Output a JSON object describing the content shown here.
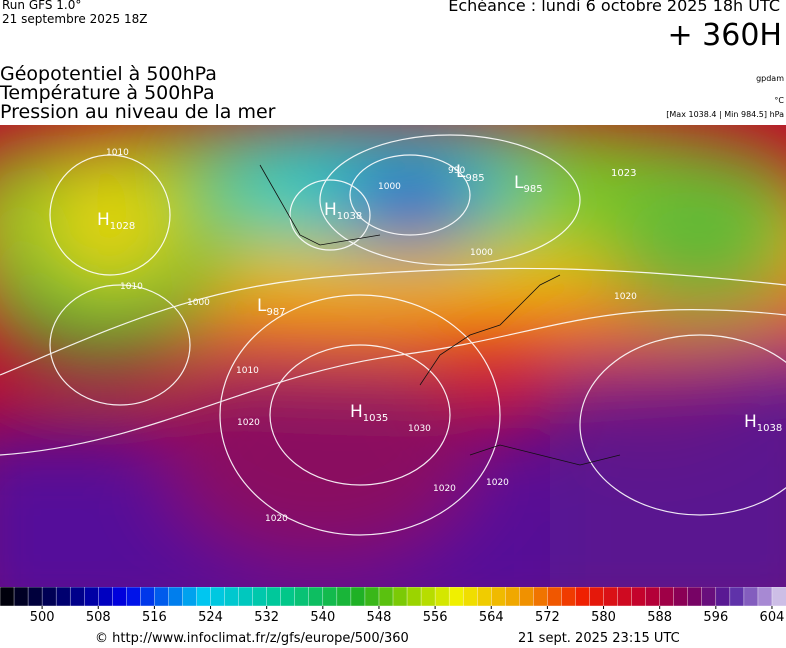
{
  "header": {
    "run": "Run GFS 1.0°",
    "run_date": "21 septembre 2025 18Z",
    "valid": "Echéance : lundi 6 octobre 2025 18h UTC",
    "lead": "+ 360H"
  },
  "fields": [
    "Géopotentiel à 500hPa",
    "Température à 500hPa",
    "Pression au niveau de la mer"
  ],
  "units": {
    "geopotential": "gpdam",
    "temperature": "°C",
    "pressure": "[Max 1038.4 | Min 984.5] hPa"
  },
  "systems": [
    {
      "letter": "H",
      "value": 1028
    },
    {
      "letter": "H",
      "value": 1038
    },
    {
      "letter": "L",
      "value": 985
    },
    {
      "letter": "L",
      "value": 985
    },
    {
      "letter": "",
      "value": 1023
    },
    {
      "letter": "L",
      "value": 987
    },
    {
      "letter": "H",
      "value": 1035
    },
    {
      "letter": "H",
      "value": 1038
    }
  ],
  "isobar_labels": [
    1010,
    1000,
    990,
    1010,
    1000,
    1010,
    1020,
    1030,
    1020,
    1020,
    1020,
    1020,
    1000
  ],
  "colorbar": {
    "range": [
      494,
      606
    ],
    "ticks": [
      500,
      508,
      516,
      524,
      532,
      540,
      548,
      556,
      564,
      572,
      580,
      588,
      596,
      604
    ]
  },
  "footer": {
    "source": "© http://www.infoclimat.fr/z/gfs/europe/500/360",
    "generated": "21 sept. 2025 23:15 UTC"
  }
}
